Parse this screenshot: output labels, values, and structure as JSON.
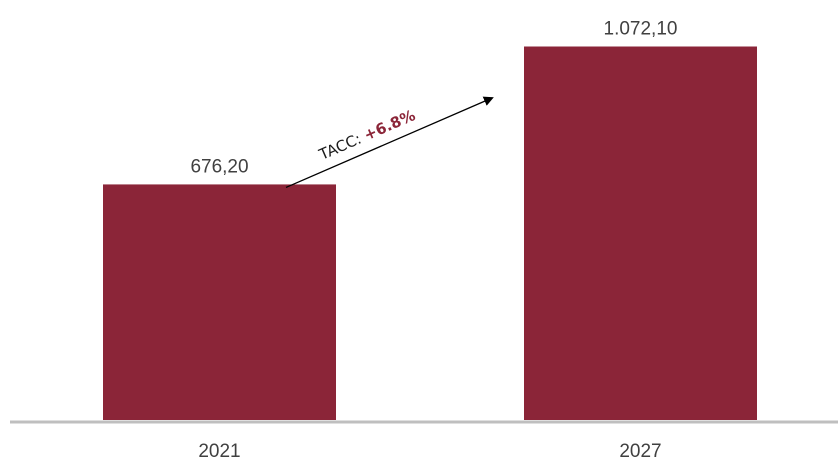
{
  "chart_data": {
    "type": "bar",
    "categories": [
      "2021",
      "2027"
    ],
    "values": [
      676.2,
      1072.1
    ],
    "value_labels": [
      "676,20",
      "1.072,10"
    ],
    "ylim": [
      0,
      1200
    ],
    "grid": false,
    "colors": {
      "bar": "#8b2538",
      "axis": "#bfbfbf",
      "text": "#404040",
      "highlight": "#8b2538"
    },
    "annotation": {
      "prefix": "TACC: ",
      "value": "+6.8%"
    }
  }
}
